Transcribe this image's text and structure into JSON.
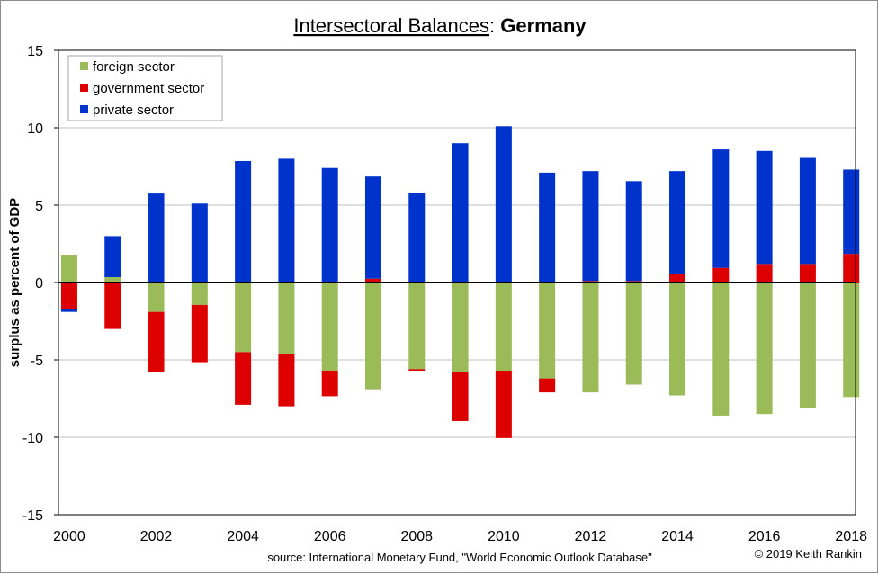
{
  "chart_data": {
    "type": "bar",
    "stacked": true,
    "title_main": "Intersectoral Balances",
    "title_separator": ": ",
    "title_country": "Germany",
    "ylabel": "surplus as percent of GDP",
    "xlabel": "",
    "ylim": [
      -15,
      15
    ],
    "yticks": [
      15,
      10,
      5,
      0,
      -5,
      -10,
      -15
    ],
    "grid": true,
    "legend_position": "top-left",
    "categories": [
      "2000",
      "2001",
      "2002",
      "2003",
      "2004",
      "2005",
      "2006",
      "2007",
      "2008",
      "2009",
      "2010",
      "2011",
      "2012",
      "2013",
      "2014",
      "2015",
      "2016",
      "2017",
      "2018"
    ],
    "xtick_labels": [
      "2000",
      "2002",
      "2004",
      "2006",
      "2008",
      "2010",
      "2012",
      "2014",
      "2016",
      "2018"
    ],
    "series": [
      {
        "name": "foreign sector",
        "color": "#9bbb59",
        "values": [
          1.8,
          0.35,
          -1.9,
          -1.45,
          -4.5,
          -4.6,
          -5.7,
          -6.9,
          -5.6,
          -5.8,
          -5.7,
          -6.2,
          -7.1,
          -6.6,
          -7.3,
          -8.6,
          -8.5,
          -8.1,
          -7.4
        ]
      },
      {
        "name": "government sector",
        "color": "#dd0000",
        "values": [
          -1.7,
          -3.0,
          -3.9,
          -3.7,
          -3.4,
          -3.4,
          -1.65,
          0.25,
          -0.1,
          -3.15,
          -4.35,
          -0.9,
          0.1,
          0.1,
          0.55,
          0.95,
          1.2,
          1.2,
          1.85
        ]
      },
      {
        "name": "private sector",
        "color": "#0033cc",
        "values": [
          -0.2,
          2.65,
          5.75,
          5.1,
          7.85,
          8.0,
          7.4,
          6.6,
          5.8,
          9.0,
          10.1,
          7.1,
          7.1,
          6.45,
          6.65,
          7.65,
          7.3,
          6.85,
          5.45
        ]
      }
    ],
    "source_note": "source:  International Monetary Fund, \"World Economic Outlook Database\"",
    "copyright": "© 2019 Keith Rankin"
  }
}
